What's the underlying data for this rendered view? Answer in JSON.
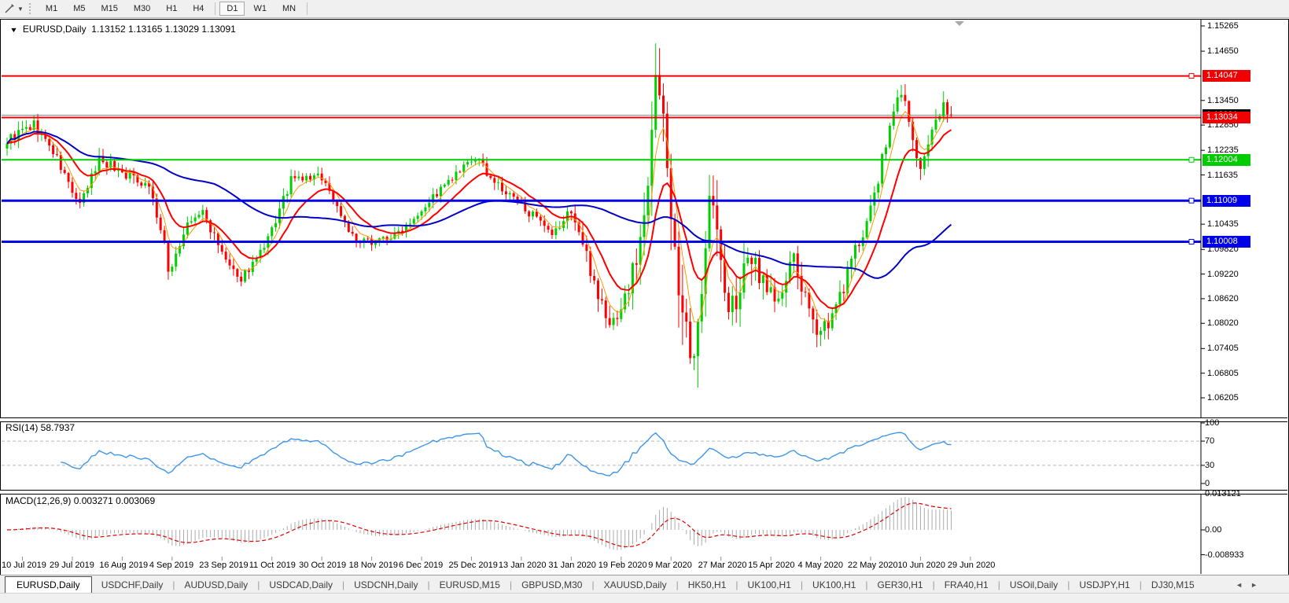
{
  "toolbar": {
    "timeframes": [
      {
        "label": "M1",
        "active": false
      },
      {
        "label": "M5",
        "active": false
      },
      {
        "label": "M15",
        "active": false
      },
      {
        "label": "M30",
        "active": false
      },
      {
        "label": "H1",
        "active": false
      },
      {
        "label": "H4",
        "active": false
      },
      {
        "label": "D1",
        "active": true
      },
      {
        "label": "W1",
        "active": false
      },
      {
        "label": "MN",
        "active": false
      }
    ]
  },
  "chart": {
    "title": "EURUSD,Daily",
    "ohlc": "1.13152 1.13165 1.13029 1.13091",
    "rsi_label": "RSI(14) 58.7937",
    "macd_label": "MACD(12,26,9) 0.003271 0.003069"
  },
  "price_axis": {
    "ticks": [
      {
        "label": "1.15265",
        "value": 1.15265
      },
      {
        "label": "1.14650",
        "value": 1.1465
      },
      {
        "label": "1.13450",
        "value": 1.1345
      },
      {
        "label": "1.12850",
        "value": 1.1285
      },
      {
        "label": "1.12235",
        "value": 1.12235
      },
      {
        "label": "1.11635",
        "value": 1.11635
      },
      {
        "label": "1.10435",
        "value": 1.10435
      },
      {
        "label": "1.09820",
        "value": 1.0982
      },
      {
        "label": "1.09220",
        "value": 1.0922
      },
      {
        "label": "1.08620",
        "value": 1.0862
      },
      {
        "label": "1.08020",
        "value": 1.0802
      },
      {
        "label": "1.07405",
        "value": 1.07405
      },
      {
        "label": "1.06805",
        "value": 1.06805
      },
      {
        "label": "1.06205",
        "value": 1.06205
      }
    ],
    "lines": [
      {
        "label": "1.14047",
        "price": 1.14047,
        "color": "#f00000",
        "width": 2,
        "handle": true
      },
      {
        "label": "1.13034",
        "price": 1.13034,
        "color": "#f00000",
        "width": 2,
        "handle": false
      },
      {
        "label": "1.12004",
        "price": 1.12004,
        "color": "#00cc00",
        "width": 2,
        "handle": true
      },
      {
        "label": "1.11009",
        "price": 1.11009,
        "color": "#0000e8",
        "width": 3,
        "handle": true
      },
      {
        "label": "1.10008",
        "price": 1.10008,
        "color": "#0000e8",
        "width": 3,
        "handle": true
      }
    ],
    "current": {
      "label": "1.13091",
      "price": 1.13091,
      "color": "#000000",
      "line_color": "#909090"
    }
  },
  "rsi_axis": {
    "ticks": [
      {
        "label": "100",
        "value": 100
      },
      {
        "label": "70",
        "value": 70
      },
      {
        "label": "30",
        "value": 30
      },
      {
        "label": "0",
        "value": 0
      }
    ],
    "levels": [
      70,
      30
    ]
  },
  "macd_axis": {
    "ticks": [
      {
        "label": "0.013121",
        "value": 0.013121
      },
      {
        "label": "0.00",
        "value": 0
      },
      {
        "label": "-0.008933",
        "value": -0.008933
      }
    ]
  },
  "x_axis": {
    "dates": [
      "10 Jul 2019",
      "29 Jul 2019",
      "16 Aug 2019",
      "4 Sep 2019",
      "23 Sep 2019",
      "11 Oct 2019",
      "30 Oct 2019",
      "18 Nov 2019",
      "6 Dec 2019",
      "25 Dec 2019",
      "13 Jan 2020",
      "31 Jan 2020",
      "19 Feb 2020",
      "9 Mar 2020",
      "27 Mar 2020",
      "15 Apr 2020",
      "4 May 2020",
      "22 May 2020",
      "10 Jun 2020",
      "29 Jun 2020"
    ]
  },
  "tabs": {
    "items": [
      {
        "label": "EURUSD,Daily",
        "active": true
      },
      {
        "label": "USDCHF,Daily",
        "active": false
      },
      {
        "label": "AUDUSD,Daily",
        "active": false
      },
      {
        "label": "USDCAD,Daily",
        "active": false
      },
      {
        "label": "USDCNH,Daily",
        "active": false
      },
      {
        "label": "EURUSD,M15",
        "active": false
      },
      {
        "label": "GBPUSD,M30",
        "active": false
      },
      {
        "label": "XAUUSD,Daily",
        "active": false
      },
      {
        "label": "HK50,H1",
        "active": false
      },
      {
        "label": "UK100,H1",
        "active": false
      },
      {
        "label": "UK100,H1",
        "active": false
      },
      {
        "label": "GER30,H1",
        "active": false
      },
      {
        "label": "FRA40,H1",
        "active": false
      },
      {
        "label": "USOil,Daily",
        "active": false
      },
      {
        "label": "USDJPY,H1",
        "active": false
      },
      {
        "label": "DJ30,M15",
        "active": false
      }
    ],
    "scroll_left": "◄",
    "scroll_right": "►"
  },
  "chart_data": {
    "type": "candlestick",
    "symbol": "EURUSD",
    "timeframe": "Daily",
    "bars": 247,
    "seed": 9,
    "last_close": 1.13091,
    "up_color": "#00cf00",
    "down_color": "#ff0000",
    "price_anchors": [
      [
        0,
        1.1248
      ],
      [
        4,
        1.127
      ],
      [
        7,
        1.1285
      ],
      [
        12,
        1.122
      ],
      [
        19,
        1.1085
      ],
      [
        24,
        1.1205
      ],
      [
        30,
        1.117
      ],
      [
        37,
        1.114
      ],
      [
        41,
        1.099
      ],
      [
        42,
        1.0926
      ],
      [
        47,
        1.104
      ],
      [
        51,
        1.1074
      ],
      [
        55,
        1.099
      ],
      [
        60,
        1.0905
      ],
      [
        67,
        1.098
      ],
      [
        74,
        1.115
      ],
      [
        82,
        1.116
      ],
      [
        91,
        1.0995
      ],
      [
        101,
        1.1015
      ],
      [
        111,
        1.111
      ],
      [
        122,
        1.1205
      ],
      [
        129,
        1.1125
      ],
      [
        135,
        1.1085
      ],
      [
        142,
        1.101
      ],
      [
        147,
        1.108
      ],
      [
        157,
        1.079
      ],
      [
        162,
        1.0885
      ],
      [
        166,
        1.105
      ],
      [
        169,
        1.144
      ],
      [
        172,
        1.1184
      ],
      [
        176,
        1.08
      ],
      [
        179,
        1.068
      ],
      [
        183,
        1.1141
      ],
      [
        188,
        1.082
      ],
      [
        194,
        1.096
      ],
      [
        201,
        1.085
      ],
      [
        205,
        1.096
      ],
      [
        210,
        1.079
      ],
      [
        215,
        1.081
      ],
      [
        220,
        1.095
      ],
      [
        226,
        1.111
      ],
      [
        230,
        1.128
      ],
      [
        233,
        1.1375
      ],
      [
        236,
        1.125
      ],
      [
        238,
        1.117
      ],
      [
        242,
        1.129
      ],
      [
        244,
        1.1345
      ],
      [
        246,
        1.1309
      ]
    ],
    "volatility_anchors": [
      [
        0,
        0.003
      ],
      [
        64,
        0.0028
      ],
      [
        104,
        0.0022
      ],
      [
        144,
        0.0028
      ],
      [
        156,
        0.005
      ],
      [
        164,
        0.0065
      ],
      [
        168,
        0.011
      ],
      [
        180,
        0.0115
      ],
      [
        190,
        0.0085
      ],
      [
        204,
        0.005
      ],
      [
        224,
        0.0045
      ],
      [
        246,
        0.0038
      ]
    ],
    "moving_averages": [
      {
        "name": "fast",
        "type": "ema",
        "period": 5,
        "color": "#ff9900",
        "width": 1
      },
      {
        "name": "medium",
        "type": "ema",
        "period": 13,
        "color": "#ff0000",
        "width": 2
      },
      {
        "name": "slow",
        "type": "sma",
        "period": 55,
        "color": "#0000c8",
        "width": 2
      }
    ],
    "rsi": {
      "period": 14,
      "color": "#3e96e8",
      "levels": [
        70,
        30
      ],
      "range": [
        0,
        100
      ]
    },
    "macd": {
      "fast": 12,
      "slow": 26,
      "signal": 9,
      "hist_color": "#ababab",
      "signal_color": "#e00000"
    },
    "ylim": [
      1.06205,
      1.15265
    ]
  }
}
